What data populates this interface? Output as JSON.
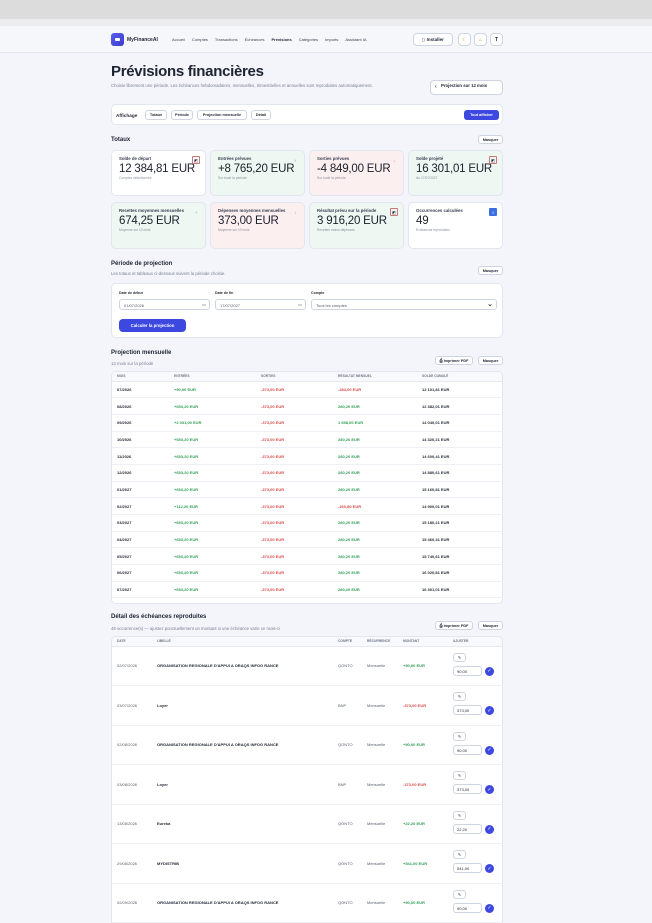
{
  "nav": {
    "brand": "MyFinanceAI",
    "links": [
      "Accueil",
      "Comptes",
      "Transactions",
      "Échéances",
      "Prévisions",
      "Catégories",
      "Imports",
      "Assistant IA"
    ],
    "install_label": "Installer",
    "user_initial": "T"
  },
  "page": {
    "title": "Prévisions financières",
    "subtitle": "Choisie librement une période. Les échéances hebdomadaires, mensuelles, trimestrielles et annuelles sont reproduites automatiquement.",
    "projection_button": "Projection sur 12 mois"
  },
  "display": {
    "label": "Affichage",
    "chips": [
      "Totaux",
      "Période",
      "Projection mensuelle",
      "Détail"
    ],
    "show_all": "Tout afficher"
  },
  "totals": {
    "title": "Totaux",
    "hide": "Masquer",
    "cards": [
      {
        "label": "Solde de départ",
        "value": "12 384,81 EUR",
        "sub": "Comptes sélectionnés"
      },
      {
        "label": "Entrées prévues",
        "value": "+8 765,20 EUR",
        "sub": "Sur toute la période"
      },
      {
        "label": "Sorties prévues",
        "value": "-4 849,00 EUR",
        "sub": "Sur toute la période"
      },
      {
        "label": "Solde projeté",
        "value": "16 301,01 EUR",
        "sub": "Au 17/07/2027"
      },
      {
        "label": "Recettes moyennes mensuelles",
        "value": "674,25 EUR",
        "sub": "Moyenne sur 13 mois"
      },
      {
        "label": "Dépenses moyennes mensuelles",
        "value": "373,00 EUR",
        "sub": "Moyenne sur 13 mois"
      },
      {
        "label": "Résultat prévu sur la période",
        "value": "3 916,20 EUR",
        "sub": "Recettes moins dépenses"
      },
      {
        "label": "Occurrences calculées",
        "value": "49",
        "sub": "Échéances reproduites"
      }
    ]
  },
  "period": {
    "title": "Période de projection",
    "subtitle": "Les totaux et tableaux ci-dessous suivent la période choisie.",
    "hide": "Masquer",
    "start_label": "Date de début",
    "start_value": "01/07/2026",
    "end_label": "Date de fin",
    "end_value": "17/07/2027",
    "account_label": "Compte",
    "account_value": "Tous les comptes",
    "submit": "Calculer la projection"
  },
  "monthly": {
    "title": "Projection mensuelle",
    "subtitle": "13 mois sur la période",
    "print": "Imprimer PDF",
    "hide": "Masquer",
    "headers": [
      "MOIS",
      "ENTRÉES",
      "SORTIES",
      "RÉSULTAT MENSUEL",
      "SOLDE CUMULÉ"
    ],
    "rows": [
      [
        "07/2026",
        "+90,00 EUR",
        "-373,00 EUR",
        "-283,00 EUR",
        "12 101,81 EUR"
      ],
      [
        "08/2026",
        "+653,20 EUR",
        "-373,00 EUR",
        "280,20 EUR",
        "12 382,01 EUR"
      ],
      [
        "09/2026",
        "+2 031,00 EUR",
        "-373,00 EUR",
        "1 658,00 EUR",
        "14 040,01 EUR"
      ],
      [
        "10/2026",
        "+653,20 EUR",
        "-373,00 EUR",
        "280,20 EUR",
        "14 320,21 EUR"
      ],
      [
        "11/2026",
        "+653,20 EUR",
        "-373,00 EUR",
        "280,20 EUR",
        "14 600,41 EUR"
      ],
      [
        "12/2026",
        "+653,20 EUR",
        "-373,00 EUR",
        "280,20 EUR",
        "14 880,61 EUR"
      ],
      [
        "01/2027",
        "+653,20 EUR",
        "-373,00 EUR",
        "280,20 EUR",
        "15 160,81 EUR"
      ],
      [
        "02/2027",
        "+112,20 EUR",
        "-373,00 EUR",
        "-260,80 EUR",
        "14 900,01 EUR"
      ],
      [
        "03/2027",
        "+653,20 EUR",
        "-373,00 EUR",
        "280,20 EUR",
        "15 180,21 EUR"
      ],
      [
        "04/2027",
        "+653,20 EUR",
        "-373,00 EUR",
        "280,20 EUR",
        "15 460,41 EUR"
      ],
      [
        "05/2027",
        "+653,20 EUR",
        "-373,00 EUR",
        "280,20 EUR",
        "15 740,61 EUR"
      ],
      [
        "06/2027",
        "+653,20 EUR",
        "-373,00 EUR",
        "280,20 EUR",
        "16 020,81 EUR"
      ],
      [
        "07/2027",
        "+653,20 EUR",
        "-373,00 EUR",
        "280,20 EUR",
        "16 301,01 EUR"
      ]
    ]
  },
  "detail": {
    "title": "Détail des échéances reproduites",
    "subtitle": "49 occurrence(s) — ajustez ponctuellement un montant si une échéance varie ce mois-ci",
    "print": "Imprimer PDF",
    "hide": "Masquer",
    "headers": [
      "DATE",
      "LIBELLÉ",
      "COMPTE",
      "RÉCURRENCE",
      "MONTANT",
      "AJUSTER"
    ],
    "rows": [
      {
        "date": "02/07/2026",
        "label": "ORGANISATION REGIONALE D'APPUI A ORAQS INFOG RANCE",
        "account": "QONTO",
        "recurrence": "Mensuelle",
        "amount": "+90,00 EUR",
        "adjust": "90,00"
      },
      {
        "date": "03/07/2026",
        "label": "Loyer",
        "account": "BNP",
        "recurrence": "Mensuelle",
        "amount": "-373,00 EUR",
        "adjust": "373,00"
      },
      {
        "date": "02/08/2026",
        "label": "ORGANISATION REGIONALE D'APPUI A ORAQS INFOG RANCE",
        "account": "QONTO",
        "recurrence": "Mensuelle",
        "amount": "+90,00 EUR",
        "adjust": "90,00"
      },
      {
        "date": "03/08/2026",
        "label": "Loyer",
        "account": "BNP",
        "recurrence": "Mensuelle",
        "amount": "-373,00 EUR",
        "adjust": "373,00"
      },
      {
        "date": "13/08/2026",
        "label": "Eureka",
        "account": "QONTO",
        "recurrence": "Mensuelle",
        "amount": "+22,20 EUR",
        "adjust": "22,20"
      },
      {
        "date": "29/08/2026",
        "label": "MYDISTRIB",
        "account": "QONTO",
        "recurrence": "Mensuelle",
        "amount": "+541,00 EUR",
        "adjust": "541,00"
      },
      {
        "date": "02/09/2026",
        "label": "ORGANISATION REGIONALE D'APPUI A ORAQS INFOG RANCE",
        "account": "QONTO",
        "recurrence": "Mensuelle",
        "amount": "+90,00 EUR",
        "adjust": "90,00"
      }
    ]
  }
}
